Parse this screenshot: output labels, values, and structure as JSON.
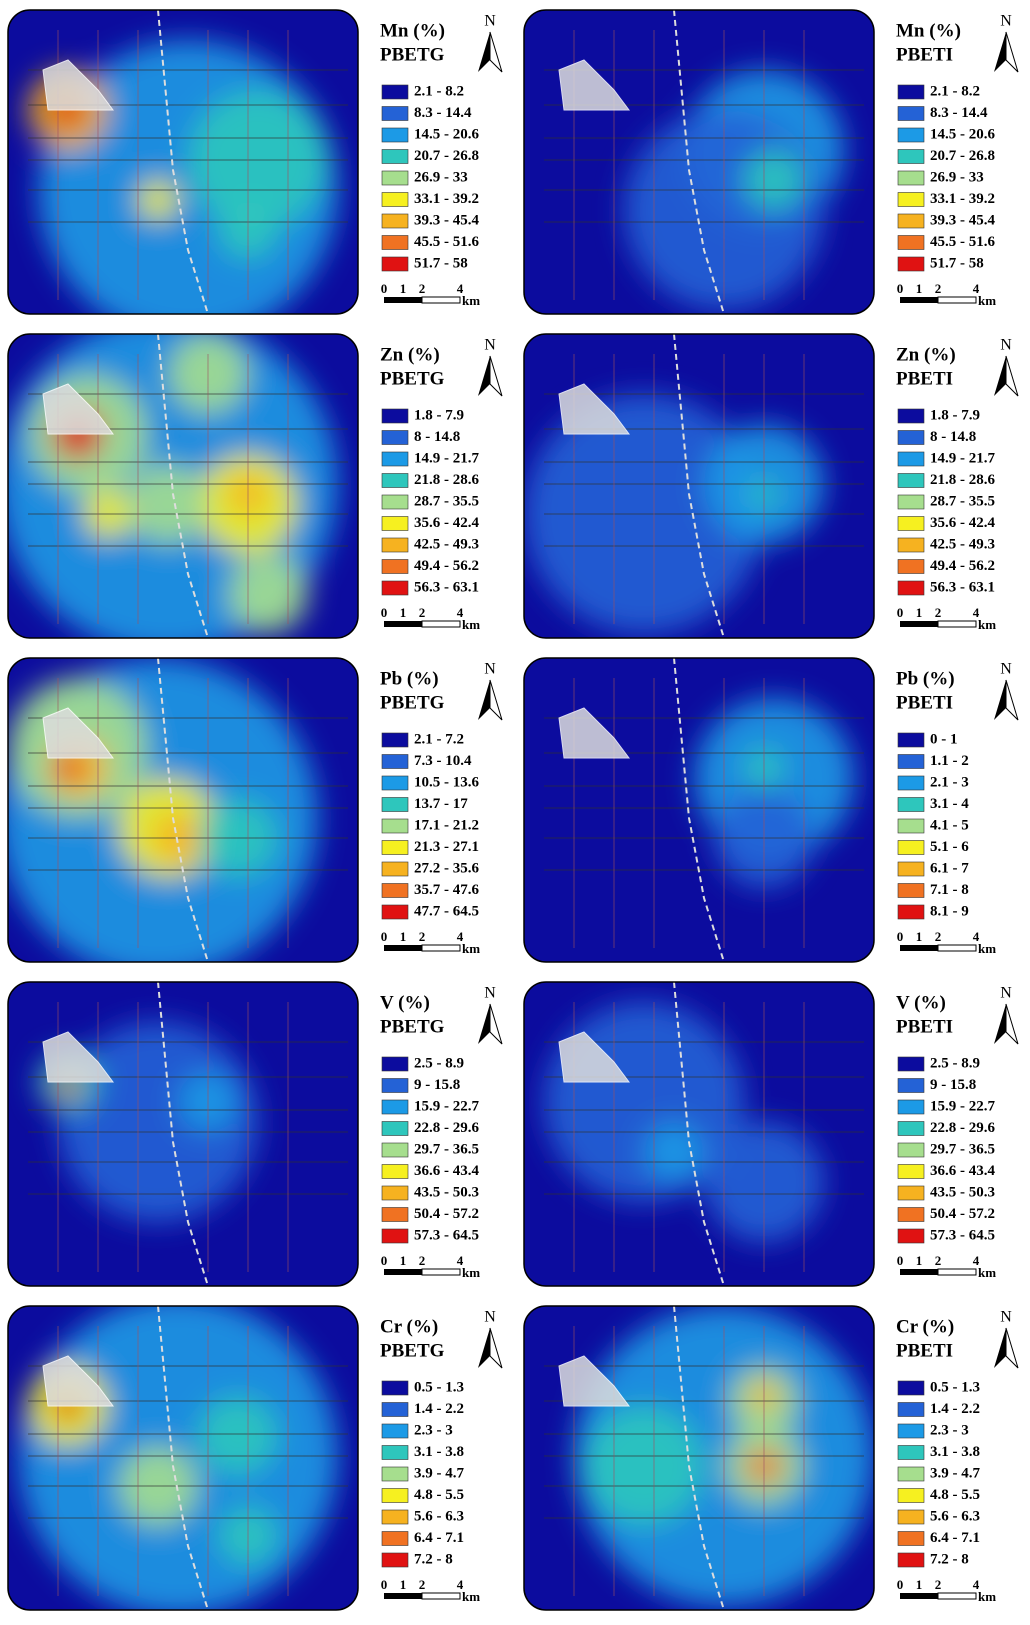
{
  "north": "N",
  "scale": {
    "labels": [
      "0",
      "1",
      "2",
      "4"
    ],
    "unit": "km"
  },
  "legend_colors": [
    "#0c0c9e",
    "#2462d6",
    "#1c9ae6",
    "#2ec6bc",
    "#a6de8e",
    "#f6f020",
    "#f6b220",
    "#f07222",
    "#e01212"
  ],
  "panels": [
    {
      "element": "Mn (%)",
      "index": "PBETG",
      "legend": [
        "2.1 - 8.2",
        "8.3 - 14.4",
        "14.5 - 20.6",
        "20.7 - 26.8",
        "26.9 - 33",
        "33.1 - 39.2",
        "39.3 - 45.4",
        "45.5 - 51.6",
        "51.7 - 58"
      ]
    },
    {
      "element": "Mn (%)",
      "index": "PBETI",
      "legend": [
        "2.1 - 8.2",
        "8.3 - 14.4",
        "14.5 - 20.6",
        "20.7 - 26.8",
        "26.9 - 33",
        "33.1 - 39.2",
        "39.3 - 45.4",
        "45.5 - 51.6",
        "51.7 - 58"
      ]
    },
    {
      "element": "Zn (%)",
      "index": "PBETG",
      "legend": [
        "1.8 - 7.9",
        "8 - 14.8",
        "14.9 - 21.7",
        "21.8 - 28.6",
        "28.7 - 35.5",
        "35.6 - 42.4",
        "42.5 - 49.3",
        "49.4 - 56.2",
        "56.3 - 63.1"
      ]
    },
    {
      "element": "Zn (%)",
      "index": "PBETI",
      "legend": [
        "1.8 - 7.9",
        "8 - 14.8",
        "14.9 - 21.7",
        "21.8 - 28.6",
        "28.7 - 35.5",
        "35.6 - 42.4",
        "42.5 - 49.3",
        "49.4 - 56.2",
        "56.3 - 63.1"
      ]
    },
    {
      "element": "Pb (%)",
      "index": "PBETG",
      "legend": [
        "2.1 - 7.2",
        "7.3 - 10.4",
        "10.5 - 13.6",
        "13.7 - 17",
        "17.1 - 21.2",
        "21.3 - 27.1",
        "27.2 - 35.6",
        "35.7 - 47.6",
        "47.7 - 64.5"
      ]
    },
    {
      "element": "Pb (%)",
      "index": "PBETI",
      "legend": [
        "0 - 1",
        "1.1 - 2",
        "2.1 - 3",
        "3.1 - 4",
        "4.1 - 5",
        "5.1 - 6",
        "6.1 - 7",
        "7.1 - 8",
        "8.1 - 9"
      ]
    },
    {
      "element": "V (%)",
      "index": "PBETG",
      "legend": [
        "2.5 - 8.9",
        "9 - 15.8",
        "15.9 - 22.7",
        "22.8 - 29.6",
        "29.7 - 36.5",
        "36.6 - 43.4",
        "43.5 - 50.3",
        "50.4 - 57.2",
        "57.3 - 64.5"
      ]
    },
    {
      "element": "V (%)",
      "index": "PBETI",
      "legend": [
        "2.5 - 8.9",
        "9 - 15.8",
        "15.9 - 22.7",
        "22.8 - 29.6",
        "29.7 - 36.5",
        "36.6 - 43.4",
        "43.5 - 50.3",
        "50.4 - 57.2",
        "57.3 - 64.5"
      ]
    },
    {
      "element": "Cr (%)",
      "index": "PBETG",
      "legend": [
        "0.5 - 1.3",
        "1.4 - 2.2",
        "2.3 - 3",
        "3.1 - 3.8",
        "3.9 - 4.7",
        "4.8 - 5.5",
        "5.6 - 6.3",
        "6.4 - 7.1",
        "7.2 - 8"
      ]
    },
    {
      "element": "Cr (%)",
      "index": "PBETI",
      "legend": [
        "0.5 - 1.3",
        "1.4 - 2.2",
        "2.3 - 3",
        "3.1 - 3.8",
        "3.9 - 4.7",
        "4.8 - 5.5",
        "5.6 - 6.3",
        "6.4 - 7.1",
        "7.2 - 8"
      ]
    }
  ]
}
